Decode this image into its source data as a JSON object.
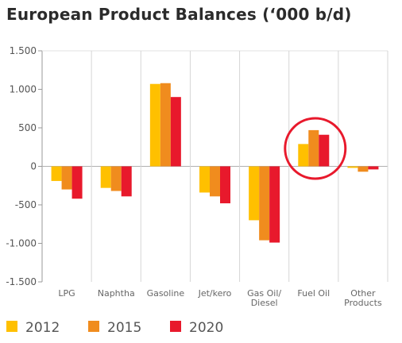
{
  "chart_data": {
    "type": "bar",
    "title": "European Product Balances (‘000 b/d)",
    "categories": [
      [
        "LPG"
      ],
      [
        "Naphtha"
      ],
      [
        "Gasoline"
      ],
      [
        "Jet/kero"
      ],
      [
        "Gas Oil/",
        "Diesel"
      ],
      [
        "Fuel Oil"
      ],
      [
        "Other",
        "Products"
      ]
    ],
    "series": [
      {
        "name": "2012",
        "color": "#FFC000",
        "values": [
          -190,
          -280,
          1070,
          -340,
          -700,
          290,
          -20
        ]
      },
      {
        "name": "2015",
        "color": "#F08C1E",
        "values": [
          -300,
          -320,
          1080,
          -390,
          -960,
          470,
          -70
        ]
      },
      {
        "name": "2020",
        "color": "#E8192C",
        "values": [
          -420,
          -390,
          900,
          -480,
          -990,
          410,
          -40
        ]
      }
    ],
    "ylim": [
      -1500,
      1500
    ],
    "yticks": [
      -1500,
      -1000,
      -500,
      0,
      500,
      1000,
      1500
    ],
    "ytick_labels": [
      "-1.500",
      "-1.000",
      "-500",
      "0",
      "500",
      "1.000",
      "1.500"
    ],
    "grid": "vertical category separators",
    "legend_position": "bottom",
    "annotation": {
      "type": "circle",
      "color": "#E8192C",
      "highlights": "Fuel Oil"
    }
  }
}
